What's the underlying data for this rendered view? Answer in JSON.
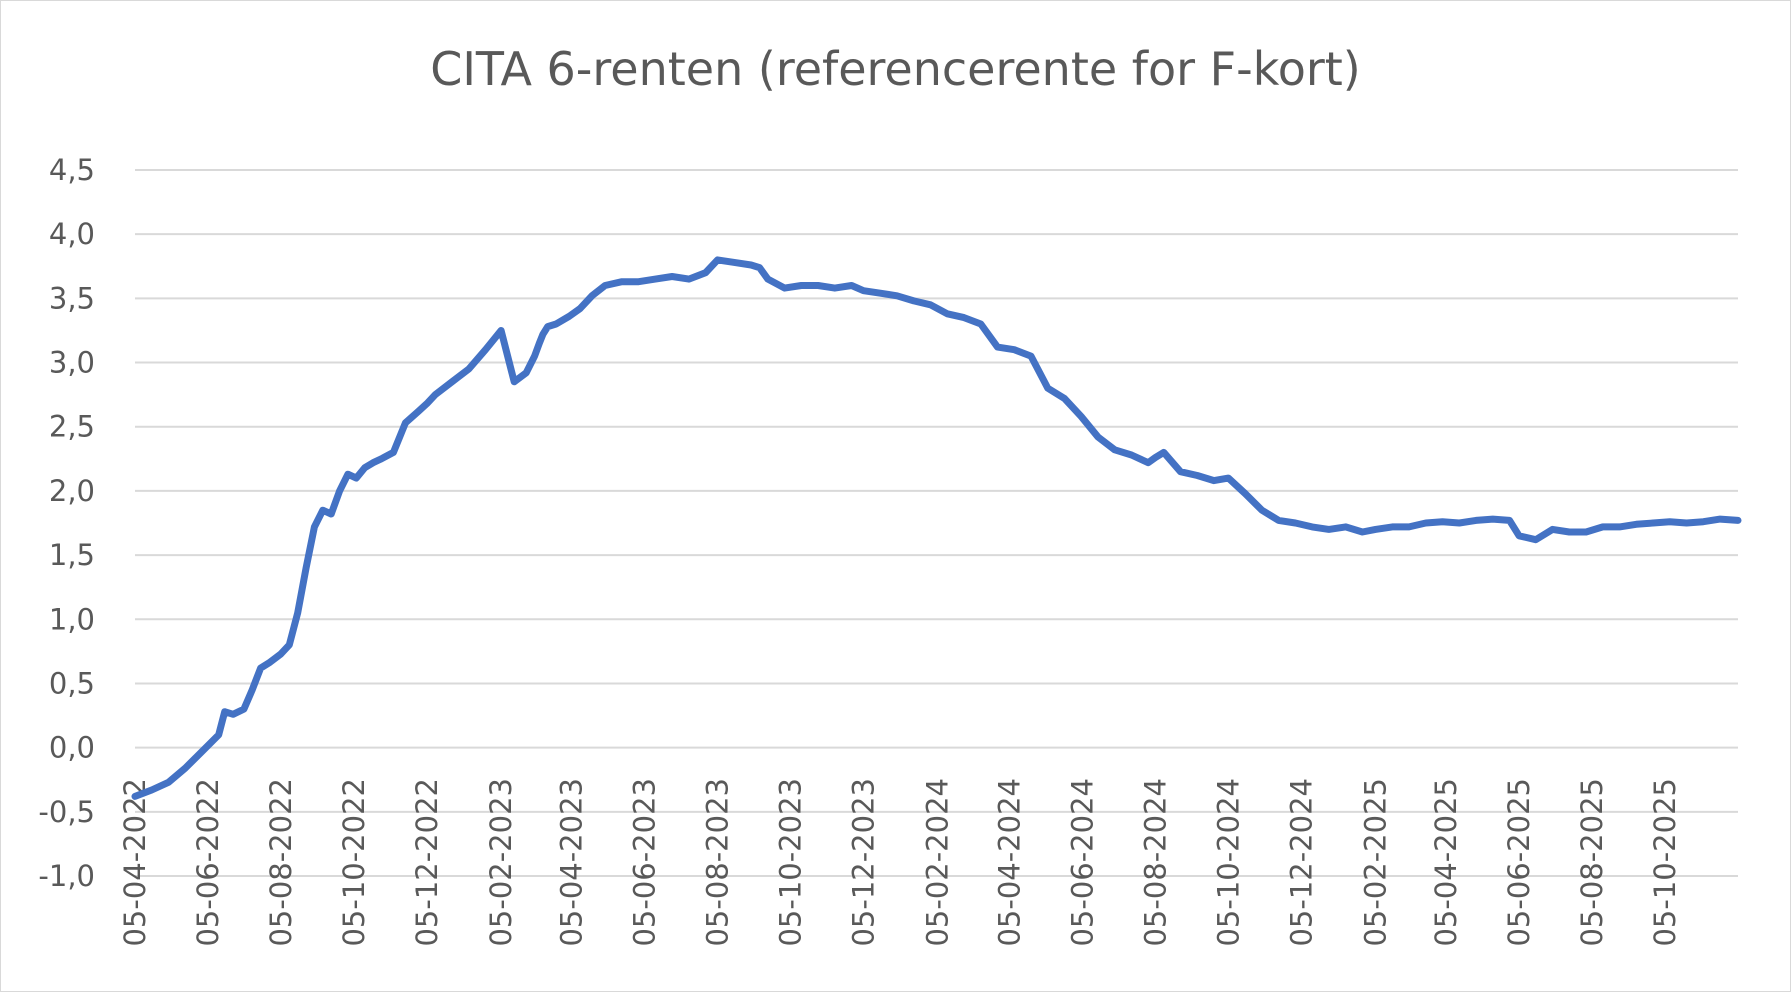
{
  "chart_data": {
    "type": "line",
    "title": "CITA 6-renten (referencerente for F-kort)",
    "xlabel": "",
    "ylabel": "",
    "ylim": [
      -1.0,
      4.5
    ],
    "y_ticks": [
      "-1,0",
      "-0,5",
      "0,0",
      "0,5",
      "1,0",
      "1,5",
      "2,0",
      "2,5",
      "3,0",
      "3,5",
      "4,0",
      "4,5"
    ],
    "y_tick_values": [
      -1.0,
      -0.5,
      0.0,
      0.5,
      1.0,
      1.5,
      2.0,
      2.5,
      3.0,
      3.5,
      4.0,
      4.5
    ],
    "x_range": [
      "2022-04-05",
      "2025-12-05"
    ],
    "x_ticks": [
      {
        "date": "2022-04-05",
        "label": "05-04-2022"
      },
      {
        "date": "2022-06-05",
        "label": "05-06-2022"
      },
      {
        "date": "2022-08-05",
        "label": "05-08-2022"
      },
      {
        "date": "2022-10-05",
        "label": "05-10-2022"
      },
      {
        "date": "2022-12-05",
        "label": "05-12-2022"
      },
      {
        "date": "2023-02-05",
        "label": "05-02-2023"
      },
      {
        "date": "2023-04-05",
        "label": "05-04-2023"
      },
      {
        "date": "2023-06-05",
        "label": "05-06-2023"
      },
      {
        "date": "2023-08-05",
        "label": "05-08-2023"
      },
      {
        "date": "2023-10-05",
        "label": "05-10-2023"
      },
      {
        "date": "2023-12-05",
        "label": "05-12-2023"
      },
      {
        "date": "2024-02-05",
        "label": "05-02-2024"
      },
      {
        "date": "2024-04-05",
        "label": "05-04-2024"
      },
      {
        "date": "2024-06-05",
        "label": "05-06-2024"
      },
      {
        "date": "2024-08-05",
        "label": "05-08-2024"
      },
      {
        "date": "2024-10-05",
        "label": "05-10-2024"
      },
      {
        "date": "2024-12-05",
        "label": "05-12-2024"
      },
      {
        "date": "2025-02-05",
        "label": "05-02-2025"
      },
      {
        "date": "2025-04-05",
        "label": "05-04-2025"
      },
      {
        "date": "2025-06-05",
        "label": "05-06-2025"
      },
      {
        "date": "2025-08-05",
        "label": "05-08-2025"
      },
      {
        "date": "2025-10-05",
        "label": "05-10-2025"
      }
    ],
    "grid": true,
    "legend": "none",
    "series": [
      {
        "color": "#4472c4",
        "x": [
          "2022-04-05",
          "2022-04-19",
          "2022-05-03",
          "2022-05-17",
          "2022-05-31",
          "2022-06-14",
          "2022-06-19",
          "2022-06-26",
          "2022-07-05",
          "2022-07-12",
          "2022-07-19",
          "2022-07-26",
          "2022-08-05",
          "2022-08-12",
          "2022-08-19",
          "2022-08-26",
          "2022-09-02",
          "2022-09-09",
          "2022-09-16",
          "2022-09-23",
          "2022-09-30",
          "2022-10-07",
          "2022-10-14",
          "2022-10-21",
          "2022-10-28",
          "2022-11-07",
          "2022-11-17",
          "2022-11-28",
          "2022-12-05",
          "2022-12-12",
          "2022-12-26",
          "2023-01-09",
          "2023-01-23",
          "2023-02-05",
          "2023-02-16",
          "2023-02-26",
          "2023-03-05",
          "2023-03-09",
          "2023-03-12",
          "2023-03-16",
          "2023-03-23",
          "2023-04-03",
          "2023-04-12",
          "2023-04-22",
          "2023-05-03",
          "2023-05-17",
          "2023-05-31",
          "2023-06-14",
          "2023-06-28",
          "2023-07-12",
          "2023-07-26",
          "2023-08-05",
          "2023-08-19",
          "2023-09-02",
          "2023-09-09",
          "2023-09-16",
          "2023-09-30",
          "2023-10-14",
          "2023-10-28",
          "2023-11-11",
          "2023-11-25",
          "2023-12-05",
          "2023-12-19",
          "2024-01-02",
          "2024-01-16",
          "2024-01-30",
          "2024-02-13",
          "2024-02-27",
          "2024-03-12",
          "2024-03-26",
          "2024-04-09",
          "2024-04-23",
          "2024-05-07",
          "2024-05-21",
          "2024-06-04",
          "2024-06-18",
          "2024-07-02",
          "2024-07-16",
          "2024-07-30",
          "2024-08-05",
          "2024-08-12",
          "2024-08-26",
          "2024-09-09",
          "2024-09-23",
          "2024-10-05",
          "2024-10-19",
          "2024-11-02",
          "2024-11-16",
          "2024-11-30",
          "2024-12-14",
          "2024-12-28",
          "2025-01-11",
          "2025-01-25",
          "2025-02-05",
          "2025-02-19",
          "2025-03-05",
          "2025-03-19",
          "2025-04-02",
          "2025-04-16",
          "2025-04-30",
          "2025-05-14",
          "2025-05-28",
          "2025-06-05",
          "2025-06-19",
          "2025-07-03",
          "2025-07-17",
          "2025-07-31",
          "2025-08-14",
          "2025-08-28",
          "2025-09-11",
          "2025-09-25",
          "2025-10-09",
          "2025-10-23",
          "2025-11-06",
          "2025-11-20",
          "2025-12-05"
        ],
        "values": [
          -0.38,
          -0.33,
          -0.27,
          -0.16,
          -0.03,
          0.1,
          0.28,
          0.26,
          0.3,
          0.45,
          0.62,
          0.66,
          0.73,
          0.8,
          1.05,
          1.4,
          1.72,
          1.85,
          1.82,
          2.0,
          2.13,
          2.1,
          2.18,
          2.22,
          2.25,
          2.3,
          2.53,
          2.62,
          2.68,
          2.75,
          2.85,
          2.95,
          3.1,
          3.25,
          2.85,
          2.92,
          3.05,
          3.15,
          3.22,
          3.28,
          3.3,
          3.36,
          3.42,
          3.52,
          3.6,
          3.63,
          3.63,
          3.65,
          3.67,
          3.65,
          3.7,
          3.8,
          3.78,
          3.76,
          3.74,
          3.65,
          3.58,
          3.6,
          3.6,
          3.58,
          3.6,
          3.56,
          3.54,
          3.52,
          3.48,
          3.45,
          3.38,
          3.35,
          3.3,
          3.12,
          3.1,
          3.05,
          2.8,
          2.72,
          2.58,
          2.42,
          2.32,
          2.28,
          2.22,
          2.26,
          2.3,
          2.15,
          2.12,
          2.08,
          2.1,
          1.98,
          1.85,
          1.77,
          1.75,
          1.72,
          1.7,
          1.72,
          1.68,
          1.7,
          1.72,
          1.72,
          1.75,
          1.76,
          1.75,
          1.77,
          1.78,
          1.77,
          1.65,
          1.62,
          1.7,
          1.68,
          1.68,
          1.72,
          1.72,
          1.74,
          1.75,
          1.76,
          1.75,
          1.76,
          1.78,
          1.77
        ]
      }
    ]
  }
}
